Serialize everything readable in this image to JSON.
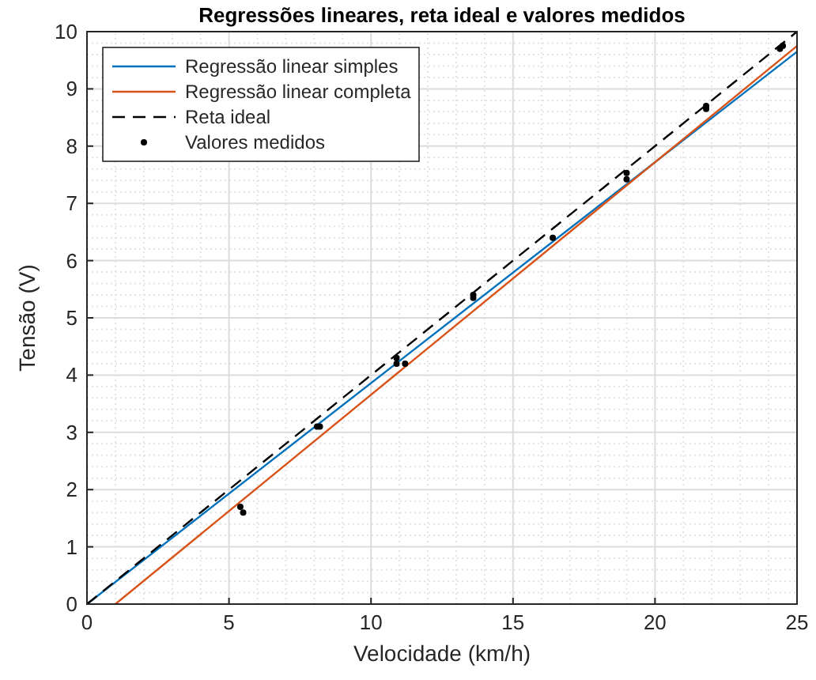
{
  "chart_data": {
    "type": "line",
    "title": "Regressões lineares, reta ideal e valores medidos",
    "xlabel": "Velocidade (km/h)",
    "ylabel": "Tensão (V)",
    "xlim": [
      0,
      25
    ],
    "ylim": [
      0,
      10
    ],
    "xticks": [
      0,
      5,
      10,
      15,
      20,
      25
    ],
    "yticks": [
      0,
      1,
      2,
      3,
      4,
      5,
      6,
      7,
      8,
      9,
      10
    ],
    "grid": true,
    "legend": "top left",
    "series": [
      {
        "name": "Regressão linear simples",
        "color": "#0072bd",
        "x": [
          0,
          25
        ],
        "values": [
          0,
          9.65
        ],
        "line_style": "solid"
      },
      {
        "name": "Regressão linear completa",
        "color": "#d95319",
        "x": [
          1,
          25
        ],
        "values": [
          0,
          9.75
        ],
        "line_style": "solid"
      },
      {
        "name": "Reta ideal",
        "color": "#000000",
        "x": [
          0,
          25
        ],
        "values": [
          0,
          10
        ],
        "line_style": "dashed"
      },
      {
        "name": "Valores medidos",
        "type": "scatter",
        "color": "#000000",
        "marker": "circle",
        "x": [
          5.4,
          5.5,
          8.1,
          8.2,
          10.9,
          10.9,
          11.2,
          13.6,
          13.6,
          16.4,
          19,
          19,
          21.8,
          21.8,
          24.4,
          24.5
        ],
        "values": [
          1.7,
          1.6,
          3.1,
          3.1,
          4.3,
          4.2,
          4.2,
          5.4,
          5.35,
          6.4,
          7.42,
          7.53,
          8.65,
          8.7,
          9.7,
          9.75
        ]
      }
    ]
  }
}
